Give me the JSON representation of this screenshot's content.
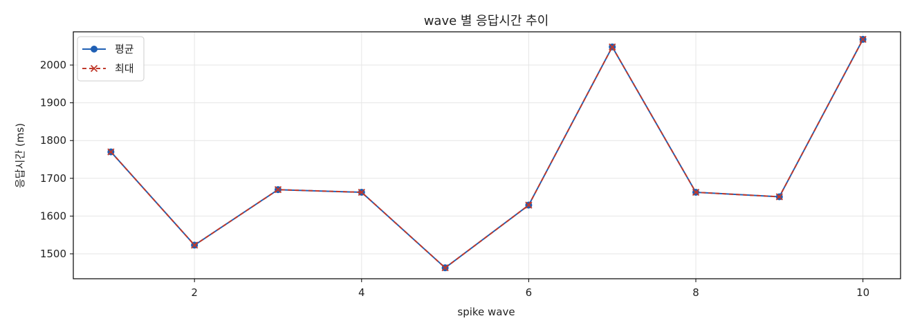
{
  "chart_data": {
    "type": "line",
    "title": "wave 별 응답시간 추이",
    "xlabel": "spike wave",
    "ylabel": "응답시간 (ms)",
    "x": [
      1,
      2,
      3,
      4,
      5,
      6,
      7,
      8,
      9,
      10
    ],
    "xlim": [
      0.55,
      10.45
    ],
    "ylim": [
      1434,
      2088
    ],
    "xticks": [
      2,
      4,
      6,
      8,
      10
    ],
    "yticks": [
      1500,
      1600,
      1700,
      1800,
      1900,
      2000
    ],
    "grid": true,
    "legend_position": "top-left",
    "series": [
      {
        "name": "평균",
        "color": "#1f5fb4",
        "style": "solid",
        "marker": "circle",
        "values": [
          1770,
          1523,
          1670,
          1663,
          1463,
          1629,
          2048,
          1663,
          1651,
          2068
        ]
      },
      {
        "name": "최대",
        "color": "#c0392b",
        "style": "dashed",
        "marker": "x",
        "values": [
          1770,
          1523,
          1670,
          1663,
          1463,
          1629,
          2048,
          1663,
          1651,
          2068
        ]
      }
    ]
  }
}
